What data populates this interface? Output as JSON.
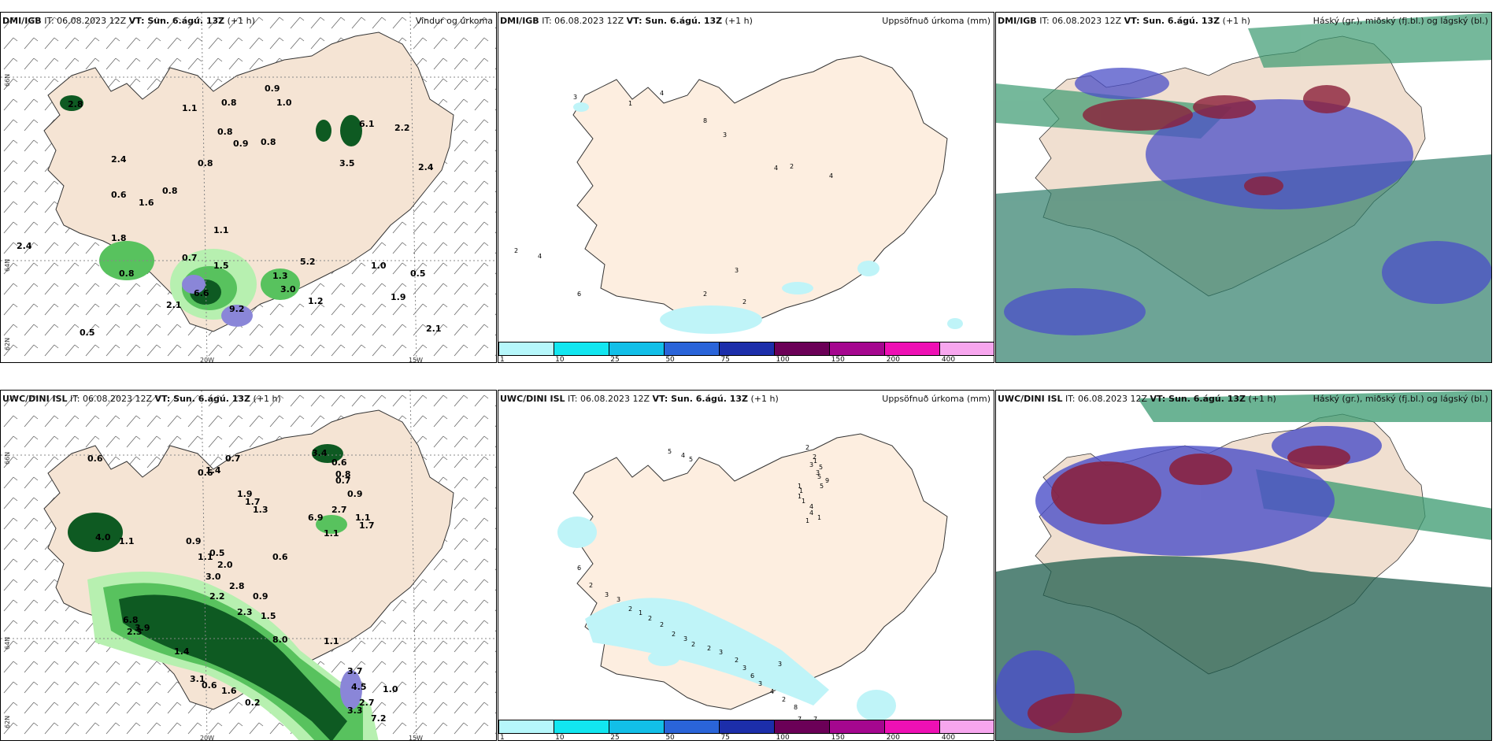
{
  "colors": {
    "land": "#f5e4d4",
    "ocean": "#ffffff",
    "precip_light": "#b7f0b0",
    "precip_mid": "#58c25e",
    "precip_dark": "#0e5a22",
    "precip_peak": "#8a86d8",
    "accum_cyan": "#bff4f8",
    "cloud_high": "#8b1f3a",
    "cloud_mid": "#4b4fc8",
    "cloud_low": "#2f7d6a"
  },
  "colorbar": {
    "ticks": [
      "1",
      "10",
      "25",
      "50",
      "75",
      "100",
      "150",
      "200",
      "400"
    ],
    "colors": [
      "#b6f7fb",
      "#12e6f0",
      "#12bfe8",
      "#2a64d9",
      "#1c2eaa",
      "#6b0057",
      "#a5078f",
      "#ee10b4",
      "#f7a6ee"
    ]
  },
  "panels": [
    {
      "source": "DMI/IGB",
      "header_rest": "IT: 06.08.2023 12Z",
      "vt_label": "VT: Sun. 6.ágú. 13Z",
      "lead": "(+1 h)",
      "title": "Vindur og úrkoma",
      "lat_labels": [
        "66N",
        "64N",
        "62N"
      ],
      "lon_labels": [
        "20W",
        "15W"
      ],
      "values": [
        "2.8",
        "1.1",
        "0.8",
        "0.9",
        "1.0",
        "6.1",
        "2.2",
        "0.8",
        "0.9",
        "0.8",
        "2.4",
        "0.8",
        "0.6",
        "1.6",
        "3.5",
        "0.8",
        "1.1",
        "0.7",
        "1.5",
        "5.2",
        "1.3",
        "3.0",
        "1.2",
        "9.2",
        "6.6",
        "0.8",
        "2.1",
        "2.4",
        "0.5",
        "1.9",
        "2.1",
        "0.5",
        "1.8",
        "1.0",
        "2.4"
      ]
    },
    {
      "source": "DMI/IGB",
      "header_rest": "IT: 06.08.2023 12Z",
      "vt_label": "VT: Sun. 6.ágú. 13Z",
      "lead": "(+1 h)",
      "title": "Uppsöfnuð úrkoma (mm)",
      "values": [
        "3",
        "1",
        "4",
        "8",
        "3",
        "4",
        "2",
        "4",
        "2",
        "4",
        "3",
        "6",
        "2",
        "2"
      ]
    },
    {
      "source": "DMI/IGB",
      "header_rest": "IT: 06.08.2023 12Z",
      "vt_label": "VT: Sun. 6.ágú. 13Z",
      "lead": "(+1 h)",
      "title": "Háský (gr.), miðský (fj.bl.) og lágský (bl.)"
    },
    {
      "source": "UWC/DINI ISL",
      "header_rest": "IT: 06.08.2023 12Z",
      "vt_label": "VT: Sun. 6.ágú. 13Z",
      "lead": "(+1 h)",
      "title": "",
      "lat_labels": [
        "66N",
        "64N",
        "62N"
      ],
      "lon_labels": [
        "20W",
        "15W"
      ],
      "values": [
        "0.6",
        "0.7",
        "1.4",
        "0.6",
        "3.4",
        "0.6",
        "0.8",
        "1.9",
        "0.7",
        "0.9",
        "1.7",
        "1.3",
        "2.7",
        "6.9",
        "1.1",
        "1.7",
        "1.1",
        "4.0",
        "1.1",
        "0.9",
        "0.5",
        "0.6",
        "1.1",
        "2.0",
        "3.0",
        "2.8",
        "2.2",
        "0.9",
        "2.3",
        "1.5",
        "6.8",
        "2.3",
        "3.9",
        "1.4",
        "3.1",
        "0.6",
        "1.6",
        "0.2",
        "2.7",
        "3.3",
        "7.2",
        "4.5",
        "8.0",
        "1.0",
        "3.7",
        "1.1"
      ]
    },
    {
      "source": "UWC/DINI ISL",
      "header_rest": "IT: 06.08.2023 12Z",
      "vt_label": "VT: Sun. 6.ágú. 13Z",
      "lead": "(+1 h)",
      "title": "Uppsöfnuð úrkoma (mm)",
      "values": [
        "5",
        "4",
        "5",
        "2",
        "2",
        "1",
        "3",
        "5",
        "3",
        "5",
        "9",
        "5",
        "1",
        "1",
        "1",
        "1",
        "4",
        "4",
        "1",
        "1",
        "6",
        "2",
        "3",
        "3",
        "2",
        "1",
        "2",
        "2",
        "2",
        "3",
        "2",
        "2",
        "3",
        "2",
        "3",
        "6",
        "3",
        "4",
        "2",
        "8",
        "7",
        "7",
        "3"
      ]
    },
    {
      "source": "UWC/DINI ISL",
      "header_rest": "IT: 06.08.2023 12Z",
      "vt_label": "VT: Sun. 6.ágú. 13Z",
      "lead": "(+1 h)",
      "title": "Háský (gr.), miðský (fj.bl.) og lágský (bl.)"
    }
  ]
}
